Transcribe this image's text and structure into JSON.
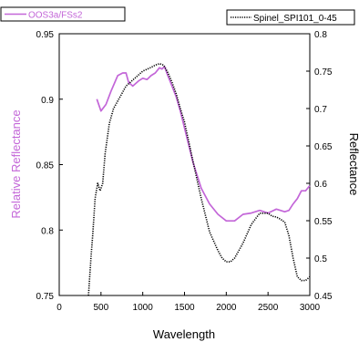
{
  "chart_data": {
    "type": "line",
    "xlabel": "Wavelength",
    "ylabel_left": "Relative Reflectance",
    "ylabel_right": "Reflectance",
    "xlim": [
      0,
      3000
    ],
    "ylim_left": [
      0.75,
      0.95
    ],
    "ylim_right": [
      0.45,
      0.8
    ],
    "x_ticks": [
      "0",
      "500",
      "1000",
      "1500",
      "2000",
      "2500",
      "3000"
    ],
    "y_left_ticks": [
      "0.75",
      "0.8",
      "0.85",
      "0.9",
      "0.95"
    ],
    "y_right_ticks": [
      "0.45",
      "0.5",
      "0.55",
      "0.6",
      "0.65",
      "0.7",
      "0.75",
      "0.8"
    ],
    "grid": false,
    "series": [
      {
        "name": "OOS3a/FSs2",
        "axis": "left",
        "color": "#c366d8",
        "style": "solid",
        "x": [
          450,
          500,
          560,
          620,
          700,
          760,
          800,
          830,
          880,
          950,
          1000,
          1050,
          1100,
          1150,
          1200,
          1230,
          1260,
          1300,
          1350,
          1400,
          1450,
          1500,
          1600,
          1700,
          1800,
          1900,
          2000,
          2100,
          2200,
          2300,
          2400,
          2500,
          2600,
          2700,
          2750,
          2800,
          2850,
          2900,
          2950,
          3000
        ],
        "values": [
          0.9,
          0.891,
          0.896,
          0.906,
          0.918,
          0.92,
          0.92,
          0.913,
          0.91,
          0.914,
          0.916,
          0.915,
          0.918,
          0.92,
          0.924,
          0.923,
          0.925,
          0.918,
          0.91,
          0.902,
          0.891,
          0.878,
          0.852,
          0.832,
          0.82,
          0.812,
          0.807,
          0.807,
          0.812,
          0.813,
          0.815,
          0.813,
          0.816,
          0.814,
          0.815,
          0.82,
          0.824,
          0.83,
          0.83,
          0.834
        ]
      },
      {
        "name": "Spinel_SPI101_0-45",
        "axis": "right",
        "color": "#000000",
        "style": "dotted",
        "x": [
          350,
          380,
          400,
          430,
          460,
          490,
          520,
          550,
          600,
          650,
          700,
          800,
          900,
          1000,
          1100,
          1150,
          1200,
          1250,
          1300,
          1350,
          1400,
          1450,
          1500,
          1600,
          1700,
          1800,
          1900,
          1950,
          2000,
          2050,
          2100,
          2150,
          2200,
          2300,
          2400,
          2450,
          2500,
          2550,
          2600,
          2650,
          2700,
          2750,
          2800,
          2850,
          2900,
          2950,
          3000
        ],
        "values": [
          0.45,
          0.5,
          0.53,
          0.58,
          0.6,
          0.59,
          0.6,
          0.64,
          0.68,
          0.7,
          0.71,
          0.73,
          0.74,
          0.75,
          0.755,
          0.758,
          0.76,
          0.758,
          0.748,
          0.735,
          0.72,
          0.7,
          0.682,
          0.63,
          0.58,
          0.535,
          0.51,
          0.5,
          0.495,
          0.495,
          0.5,
          0.51,
          0.52,
          0.545,
          0.56,
          0.56,
          0.56,
          0.556,
          0.555,
          0.552,
          0.548,
          0.53,
          0.5,
          0.475,
          0.47,
          0.47,
          0.475
        ]
      }
    ]
  }
}
